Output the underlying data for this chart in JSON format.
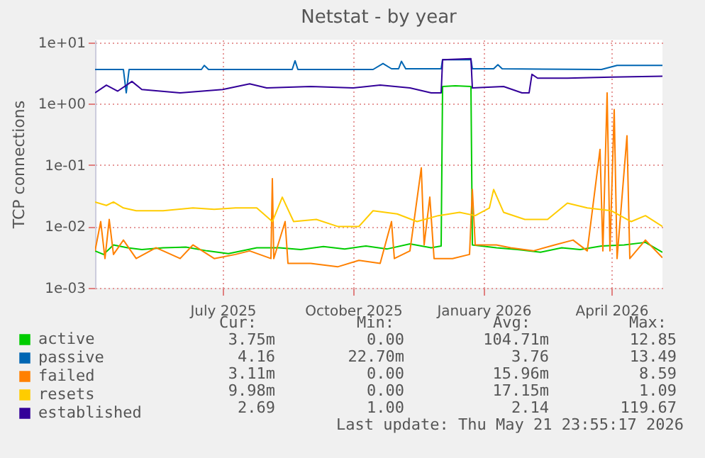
{
  "chart_data": {
    "type": "line",
    "title": "Netstat - by year",
    "ylabel": "TCP connections",
    "log": "y",
    "grid": true,
    "legend": "bottom left",
    "ylim": [
      0.001,
      11
    ],
    "yticks": [
      {
        "value": 0.001,
        "label": "1e-03"
      },
      {
        "value": 0.01,
        "label": "1e-02"
      },
      {
        "value": 0.1,
        "label": "1e-01"
      },
      {
        "value": 1,
        "label": "1e+00"
      },
      {
        "value": 10,
        "label": "1e+01"
      }
    ],
    "xlim": [
      "2025-04-02",
      "2026-05-07"
    ],
    "xticks": [
      {
        "value": "2025-07-01",
        "label": "July 2025"
      },
      {
        "value": "2025-10-01",
        "label": "October 2025"
      },
      {
        "value": "2026-01-01",
        "label": "January 2026"
      },
      {
        "value": "2026-04-01",
        "label": "April 2026"
      }
    ],
    "annotations": [
      "Cur:",
      "Min:",
      "Avg:",
      "Max:",
      "3.75m",
      "0.00",
      "104.71m",
      "12.85",
      "4.16",
      "22.70m",
      "3.76",
      "13.49",
      "3.11m",
      "0.00",
      "15.96m",
      "8.59",
      "9.98m",
      "0.00",
      "17.15m",
      "1.09",
      "2.69",
      "1.00",
      "2.14",
      "119.67",
      "Last update: Thu May 21 23:55:17 2026"
    ],
    "series": [
      {
        "name": "active",
        "color": "#00cc00",
        "x": [
          "2025-04-02",
          "2025-04-08",
          "2025-04-15",
          "2025-04-25",
          "2025-05-05",
          "2025-05-20",
          "2025-06-05",
          "2025-06-20",
          "2025-07-05",
          "2025-07-25",
          "2025-08-10",
          "2025-08-25",
          "2025-09-10",
          "2025-09-25",
          "2025-10-10",
          "2025-10-25",
          "2025-11-10",
          "2025-11-25",
          "2025-12-02",
          "2025-12-03",
          "2025-12-12",
          "2025-12-23",
          "2025-12-24",
          "2026-01-10",
          "2026-01-25",
          "2026-02-10",
          "2026-02-25",
          "2026-03-10",
          "2026-03-25",
          "2026-04-10",
          "2026-04-25",
          "2026-05-07"
        ],
        "values": [
          0.004,
          0.0035,
          0.005,
          0.0045,
          0.0042,
          0.0045,
          0.0046,
          0.004,
          0.0036,
          0.0045,
          0.0045,
          0.0042,
          0.0047,
          0.0043,
          0.0048,
          0.0043,
          0.0052,
          0.0045,
          0.0048,
          1.9,
          1.95,
          1.9,
          0.005,
          0.0045,
          0.0042,
          0.0038,
          0.0045,
          0.0042,
          0.0048,
          0.005,
          0.0055,
          0.0038
        ]
      },
      {
        "name": "passive",
        "color": "#0066b3",
        "x": [
          "2025-04-02",
          "2025-04-22",
          "2025-04-24",
          "2025-04-26",
          "2025-06-16",
          "2025-06-18",
          "2025-06-21",
          "2025-08-19",
          "2025-08-21",
          "2025-08-23",
          "2025-10-15",
          "2025-10-22",
          "2025-10-28",
          "2025-11-02",
          "2025-11-04",
          "2025-11-07",
          "2025-12-02",
          "2025-12-03",
          "2025-12-23",
          "2025-12-24",
          "2026-01-08",
          "2026-01-11",
          "2026-01-14",
          "2026-03-25",
          "2026-04-05",
          "2026-05-07"
        ],
        "values": [
          3.6,
          3.6,
          1.5,
          3.6,
          3.6,
          4.2,
          3.6,
          3.6,
          5.0,
          3.6,
          3.6,
          4.5,
          3.7,
          3.7,
          4.9,
          3.7,
          3.7,
          5.2,
          5.2,
          3.7,
          3.7,
          4.3,
          3.7,
          3.6,
          4.2,
          4.2
        ]
      },
      {
        "name": "failed",
        "color": "#ff8000",
        "x": [
          "2025-04-02",
          "2025-04-06",
          "2025-04-09",
          "2025-04-12",
          "2025-04-15",
          "2025-04-22",
          "2025-05-01",
          "2025-05-15",
          "2025-06-01",
          "2025-06-10",
          "2025-06-25",
          "2025-07-10",
          "2025-07-20",
          "2025-08-04",
          "2025-08-05",
          "2025-08-06",
          "2025-08-14",
          "2025-08-16",
          "2025-09-01",
          "2025-09-20",
          "2025-10-05",
          "2025-10-20",
          "2025-10-28",
          "2025-10-30",
          "2025-11-10",
          "2025-11-18",
          "2025-11-20",
          "2025-11-24",
          "2025-11-27",
          "2025-12-10",
          "2025-12-22",
          "2025-12-24",
          "2025-12-26",
          "2026-01-10",
          "2026-01-20",
          "2026-02-05",
          "2026-02-20",
          "2026-03-05",
          "2026-03-15",
          "2026-03-24",
          "2026-03-26",
          "2026-03-29",
          "2026-03-31",
          "2026-04-03",
          "2026-04-05",
          "2026-04-12",
          "2026-04-14",
          "2026-04-25",
          "2026-05-07"
        ],
        "values": [
          0.004,
          0.012,
          0.003,
          0.013,
          0.0035,
          0.006,
          0.003,
          0.0045,
          0.003,
          0.005,
          0.003,
          0.0035,
          0.004,
          0.003,
          0.06,
          0.003,
          0.012,
          0.0025,
          0.0025,
          0.0022,
          0.0028,
          0.0025,
          0.012,
          0.003,
          0.004,
          0.09,
          0.005,
          0.03,
          0.003,
          0.003,
          0.0035,
          0.04,
          0.005,
          0.005,
          0.0045,
          0.004,
          0.005,
          0.006,
          0.004,
          0.18,
          0.004,
          1.5,
          0.004,
          0.8,
          0.003,
          0.3,
          0.003,
          0.006,
          0.0031
        ]
      },
      {
        "name": "resets",
        "color": "#ffcc00",
        "x": [
          "2025-04-02",
          "2025-04-10",
          "2025-04-15",
          "2025-04-22",
          "2025-05-01",
          "2025-05-20",
          "2025-06-10",
          "2025-06-25",
          "2025-07-10",
          "2025-07-25",
          "2025-08-05",
          "2025-08-12",
          "2025-08-20",
          "2025-09-05",
          "2025-09-20",
          "2025-10-05",
          "2025-10-15",
          "2025-11-01",
          "2025-11-15",
          "2025-11-30",
          "2025-12-15",
          "2025-12-26",
          "2026-01-05",
          "2026-01-08",
          "2026-01-15",
          "2026-01-30",
          "2026-02-15",
          "2026-03-01",
          "2026-03-15",
          "2026-04-01",
          "2026-04-15",
          "2026-04-25",
          "2026-05-07"
        ],
        "values": [
          0.025,
          0.022,
          0.025,
          0.02,
          0.018,
          0.018,
          0.02,
          0.019,
          0.02,
          0.02,
          0.012,
          0.03,
          0.012,
          0.013,
          0.01,
          0.01,
          0.018,
          0.016,
          0.012,
          0.015,
          0.017,
          0.015,
          0.02,
          0.04,
          0.017,
          0.013,
          0.013,
          0.024,
          0.02,
          0.018,
          0.012,
          0.015,
          0.01
        ]
      },
      {
        "name": "established",
        "color": "#330099",
        "x": [
          "2025-04-02",
          "2025-04-10",
          "2025-04-18",
          "2025-04-28",
          "2025-05-05",
          "2025-06-01",
          "2025-07-01",
          "2025-07-20",
          "2025-08-01",
          "2025-09-01",
          "2025-10-01",
          "2025-10-20",
          "2025-11-10",
          "2025-11-25",
          "2025-12-02",
          "2025-12-03",
          "2025-12-23",
          "2025-12-24",
          "2026-01-15",
          "2026-01-28",
          "2026-02-02",
          "2026-02-04",
          "2026-02-08",
          "2026-03-01",
          "2026-04-01",
          "2026-05-07"
        ],
        "values": [
          1.5,
          2.0,
          1.6,
          2.3,
          1.7,
          1.5,
          1.7,
          2.1,
          1.8,
          1.9,
          1.8,
          2.0,
          1.8,
          1.5,
          1.5,
          5.2,
          5.4,
          1.8,
          1.9,
          1.5,
          1.5,
          3.0,
          2.6,
          2.6,
          2.7,
          2.8
        ]
      }
    ]
  }
}
